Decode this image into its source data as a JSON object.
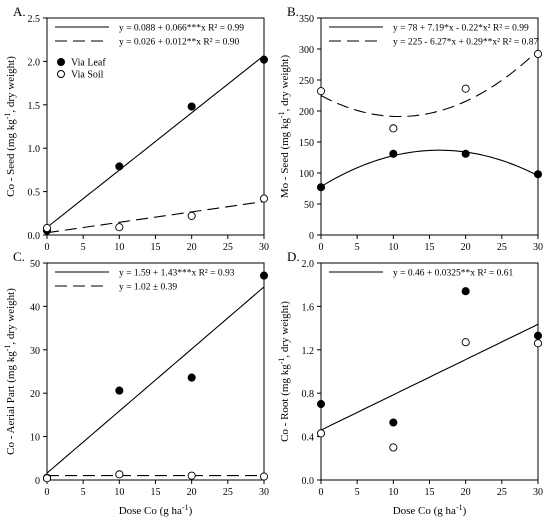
{
  "xlabel_common": "Dose Co (g ha",
  "xlabel_sup": "-1",
  "xlabel_tail": ")",
  "legend_points": {
    "leaf": "Via Leaf",
    "soil": "Via Soil"
  },
  "chart_data": [
    {
      "id": "A",
      "panel_label": "A.",
      "type": "scatter",
      "ylabel": "Co - Seed (mg kg-1, dry weight)",
      "ylim": [
        0,
        2.5
      ],
      "yticks": [
        "0.0",
        "0.5",
        "1.0",
        "1.5",
        "2.0",
        "2.5"
      ],
      "xlim": [
        0,
        30
      ],
      "xticks": [
        "0",
        "5",
        "10",
        "15",
        "20",
        "25",
        "30"
      ],
      "x": [
        0,
        10,
        20,
        30
      ],
      "series": [
        {
          "name": "Via Leaf",
          "marker": "filled",
          "values": [
            0.05,
            0.79,
            1.48,
            2.02
          ]
        },
        {
          "name": "Via Soil",
          "marker": "open",
          "values": [
            0.08,
            0.09,
            0.22,
            0.42
          ]
        }
      ],
      "fits": [
        {
          "style": "solid",
          "coef": [
            0.088,
            0.066,
            0
          ],
          "label": "y = 0.088 + 0.066***x   R² = 0.99"
        },
        {
          "style": "dashed",
          "coef": [
            0.026,
            0.012,
            0
          ],
          "label": "y = 0.026 + 0.012**x   R² = 0.90"
        }
      ],
      "show_point_legend": true
    },
    {
      "id": "B",
      "panel_label": "B.",
      "type": "scatter",
      "ylabel": "Mo - Seed (mg kg-1, dry weight)",
      "ylim": [
        0,
        350
      ],
      "yticks": [
        "0",
        "50",
        "100",
        "150",
        "200",
        "250",
        "300",
        "350"
      ],
      "xlim": [
        0,
        30
      ],
      "xticks": [
        "0",
        "5",
        "10",
        "15",
        "20",
        "25",
        "30"
      ],
      "x": [
        0,
        10,
        20,
        30
      ],
      "series": [
        {
          "name": "Via Leaf",
          "marker": "filled",
          "values": [
            77,
            131,
            131,
            98
          ]
        },
        {
          "name": "Via Soil",
          "marker": "open",
          "values": [
            232,
            172,
            236,
            292
          ]
        }
      ],
      "fits": [
        {
          "style": "solid",
          "coef": [
            78,
            7.19,
            -0.22
          ],
          "label": "y = 78 + 7.19*x - 0.22*x²   R² = 0.99"
        },
        {
          "style": "dashed",
          "coef": [
            225,
            -6.27,
            0.29
          ],
          "label": "y = 225 - 6.27*x + 0.29**x²   R² = 0.87"
        }
      ],
      "show_point_legend": false
    },
    {
      "id": "C",
      "panel_label": "C.",
      "type": "scatter",
      "ylabel": "Co - Aerial Part (mg kg-1, dry weight)",
      "ylim": [
        0,
        50
      ],
      "yticks": [
        "0",
        "10",
        "20",
        "30",
        "40",
        "50"
      ],
      "xlim": [
        0,
        30
      ],
      "xticks": [
        "0",
        "5",
        "10",
        "15",
        "20",
        "25",
        "30"
      ],
      "x": [
        0,
        10,
        20,
        30
      ],
      "series": [
        {
          "name": "Via Leaf",
          "marker": "filled",
          "values": [
            0.5,
            20.6,
            23.6,
            47.1
          ]
        },
        {
          "name": "Via Soil",
          "marker": "open",
          "values": [
            0.4,
            1.3,
            1.0,
            0.8
          ]
        }
      ],
      "fits": [
        {
          "style": "solid",
          "coef": [
            1.59,
            1.43,
            0
          ],
          "label": "y = 1.59 + 1.43***x   R² = 0.93"
        },
        {
          "style": "dashed",
          "coef": [
            1.02,
            0,
            0
          ],
          "label": "y = 1.02 ± 0.39"
        }
      ],
      "show_point_legend": false
    },
    {
      "id": "D",
      "panel_label": "D.",
      "type": "scatter",
      "ylabel": "Co - Root (mg kg-1, dry weight)",
      "ylim": [
        0,
        2.0
      ],
      "yticks": [
        "0.0",
        "0.4",
        "0.8",
        "1.2",
        "1.6",
        "2.0"
      ],
      "xlim": [
        0,
        30
      ],
      "xticks": [
        "0",
        "5",
        "10",
        "15",
        "20",
        "25",
        "30"
      ],
      "x": [
        0,
        10,
        20,
        30
      ],
      "series": [
        {
          "name": "Via Leaf",
          "marker": "filled",
          "values": [
            0.7,
            0.53,
            1.74,
            1.33
          ]
        },
        {
          "name": "Via Soil",
          "marker": "open",
          "values": [
            0.43,
            0.3,
            1.27,
            1.26
          ]
        }
      ],
      "fits": [
        {
          "style": "solid",
          "coef": [
            0.46,
            0.0325,
            0
          ],
          "label": "y = 0.46 + 0.0325**x   R² = 0.61"
        }
      ],
      "show_point_legend": false
    }
  ]
}
